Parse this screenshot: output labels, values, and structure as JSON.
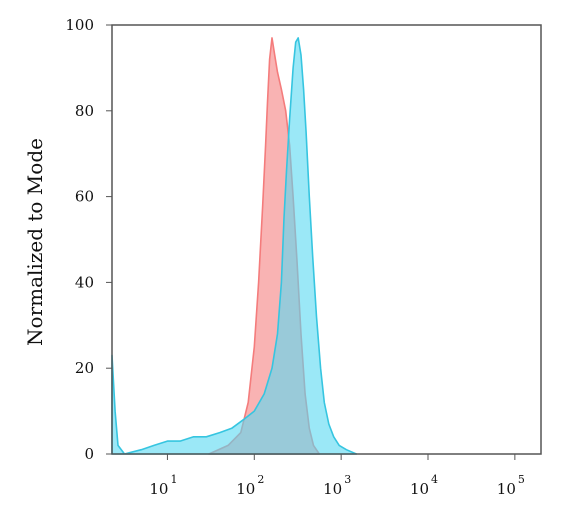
{
  "chart_data": {
    "type": "area",
    "title": "",
    "xlabel": "",
    "ylabel": "Normalized to Mode",
    "x_scale": "log",
    "xlim": [
      2.3,
      200000
    ],
    "ylim": [
      0,
      100
    ],
    "grid": false,
    "legend": "none",
    "x_ticks": [
      {
        "value": 10,
        "base": "10",
        "exp": "1"
      },
      {
        "value": 100,
        "base": "10",
        "exp": "2"
      },
      {
        "value": 1000,
        "base": "10",
        "exp": "3"
      },
      {
        "value": 10000,
        "base": "10",
        "exp": "4"
      },
      {
        "value": 100000,
        "base": "10",
        "exp": "5"
      }
    ],
    "y_ticks": [
      "0",
      "20",
      "40",
      "60",
      "80",
      "100"
    ],
    "series": [
      {
        "color": "#f47c7c",
        "fill": "#f79a9a",
        "points": [
          [
            30,
            0
          ],
          [
            50,
            2
          ],
          [
            70,
            5
          ],
          [
            85,
            12
          ],
          [
            100,
            25
          ],
          [
            112,
            40
          ],
          [
            125,
            58
          ],
          [
            135,
            72
          ],
          [
            142,
            82
          ],
          [
            150,
            92
          ],
          [
            160,
            97
          ],
          [
            172,
            93
          ],
          [
            185,
            89
          ],
          [
            205,
            85
          ],
          [
            230,
            80
          ],
          [
            255,
            72
          ],
          [
            280,
            60
          ],
          [
            310,
            45
          ],
          [
            345,
            28
          ],
          [
            385,
            14
          ],
          [
            430,
            6
          ],
          [
            480,
            2
          ],
          [
            560,
            0
          ]
        ]
      },
      {
        "color": "#36c5e0",
        "fill": "#59d9f2",
        "points": [
          [
            2.3,
            23
          ],
          [
            2.5,
            10
          ],
          [
            2.7,
            2
          ],
          [
            3.2,
            0
          ],
          [
            5,
            1
          ],
          [
            7,
            2
          ],
          [
            10,
            3
          ],
          [
            14,
            3
          ],
          [
            20,
            4
          ],
          [
            28,
            4
          ],
          [
            40,
            5
          ],
          [
            55,
            6
          ],
          [
            75,
            8
          ],
          [
            100,
            10
          ],
          [
            130,
            14
          ],
          [
            160,
            20
          ],
          [
            185,
            28
          ],
          [
            205,
            40
          ],
          [
            220,
            55
          ],
          [
            235,
            66
          ],
          [
            255,
            78
          ],
          [
            280,
            90
          ],
          [
            300,
            96
          ],
          [
            320,
            97
          ],
          [
            345,
            93
          ],
          [
            370,
            85
          ],
          [
            395,
            75
          ],
          [
            430,
            60
          ],
          [
            470,
            46
          ],
          [
            520,
            32
          ],
          [
            580,
            20
          ],
          [
            640,
            12
          ],
          [
            720,
            7
          ],
          [
            820,
            4
          ],
          [
            950,
            2
          ],
          [
            1150,
            1
          ],
          [
            1500,
            0
          ]
        ]
      }
    ]
  }
}
